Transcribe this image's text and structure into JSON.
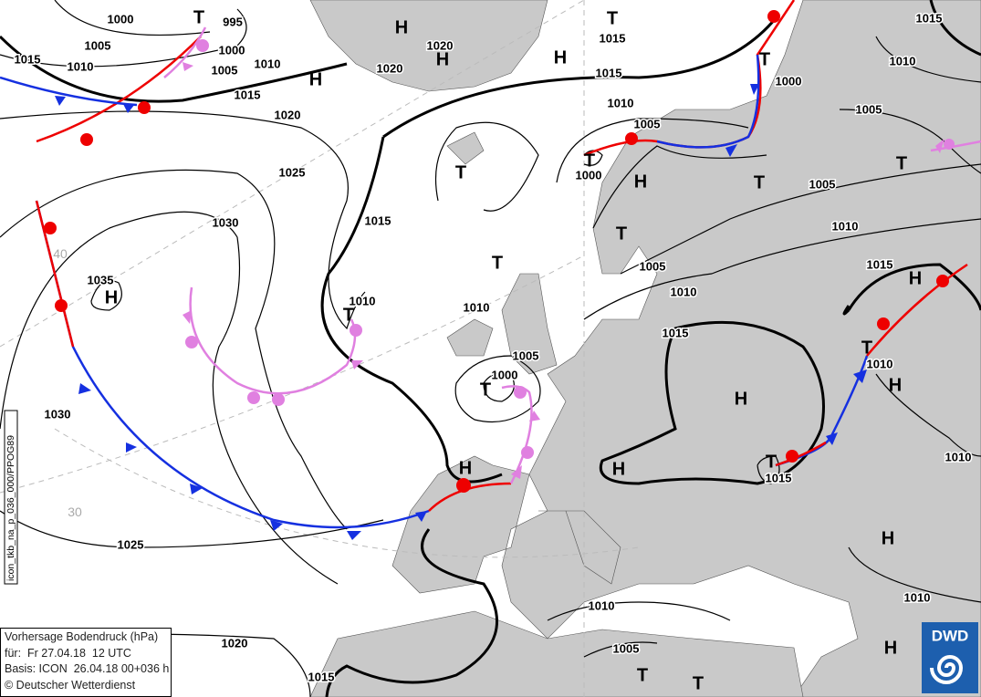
{
  "info_box": {
    "title": "Vorhersage Bodendruck (hPa)",
    "valid": "für:  Fr 27.04.18  12 UTC",
    "base": "Basis: ICON  26.04.18 00+036 h",
    "copyright": "© Deutscher Wetterdienst"
  },
  "side_label": "icon_tkb_na_p_036_000/PPOG89",
  "logo": "DWD",
  "latitude_labels": [
    "40",
    "30"
  ],
  "isobar_labels": [
    1000,
    995,
    1005,
    1000,
    1015,
    1010,
    1005,
    1010,
    1020,
    1020,
    1015,
    1020,
    1025,
    1030,
    1035,
    1015,
    1010,
    1030,
    1025,
    1020,
    1015,
    1015,
    1015,
    1010,
    1005,
    1000,
    1000,
    1005,
    1010,
    1015,
    1015,
    1010,
    1005,
    1010,
    1005,
    1000,
    1005,
    1010,
    1015,
    1010,
    1015,
    1010,
    1010,
    1010,
    1005
  ],
  "pressure_systems": [
    "T",
    "H",
    "H",
    "T",
    "H",
    "H",
    "T",
    "T",
    "T",
    "H",
    "T",
    "T",
    "T",
    "T",
    "H",
    "T",
    "H",
    "T",
    "H",
    "H",
    "T",
    "H",
    "H",
    "T",
    "H",
    "H",
    "T",
    "T"
  ]
}
